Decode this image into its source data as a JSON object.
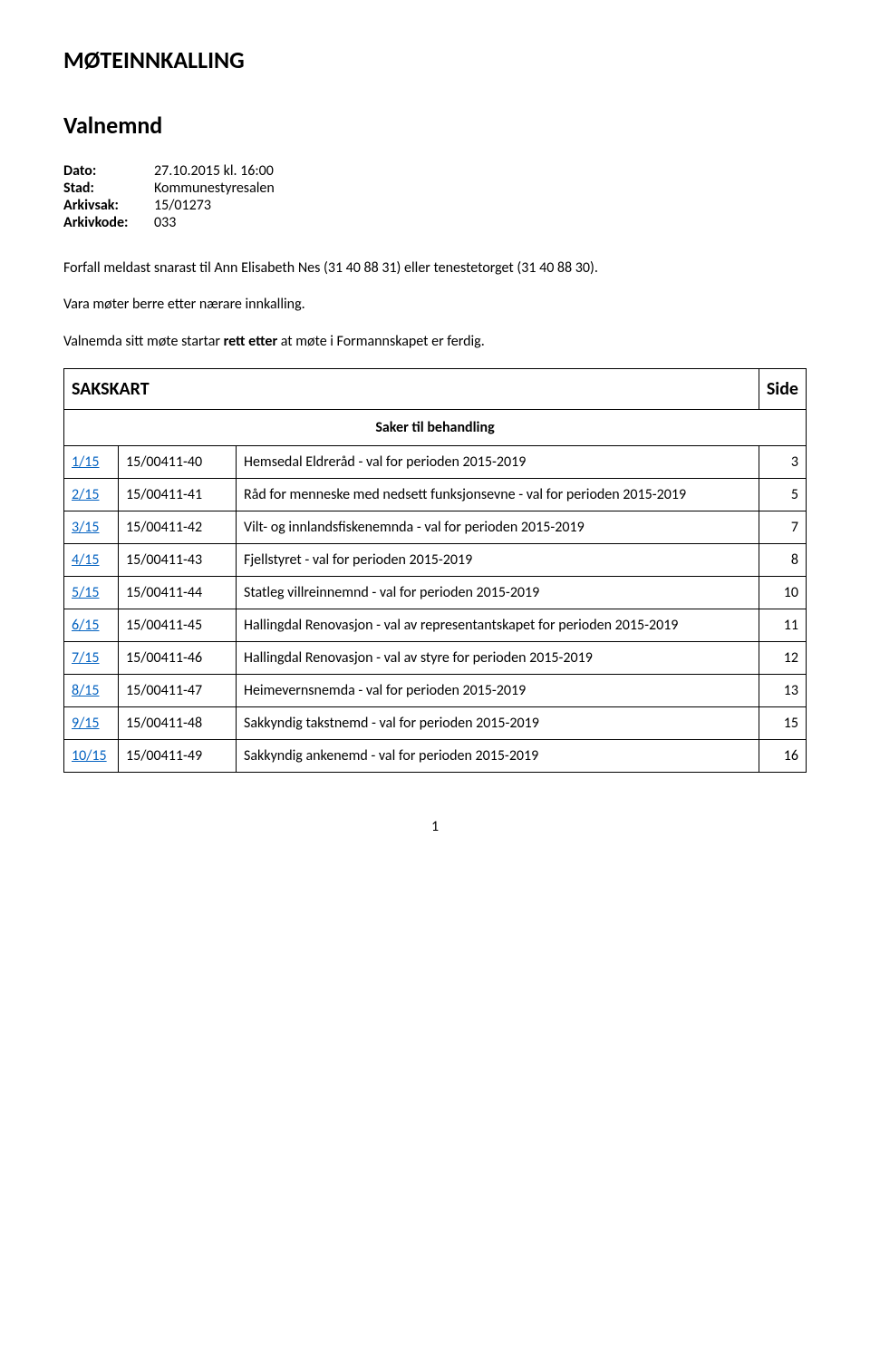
{
  "title": "MØTEINNKALLING",
  "subtitle": "Valnemnd",
  "meta": {
    "dato_label": "Dato:",
    "dato_value": "27.10.2015 kl. 16:00",
    "stad_label": "Stad:",
    "stad_value": "Kommunestyresalen",
    "arkivsak_label": "Arkivsak:",
    "arkivsak_value": "15/01273",
    "arkivkode_label": "Arkivkode:",
    "arkivkode_value": "033"
  },
  "body1": "Forfall meldast snarast til Ann Elisabeth Nes (31 40 88 31) eller tenestetorget (31 40 88 30).",
  "body2": "Vara møter berre etter nærare innkalling.",
  "body3_prefix": "Valnemda sitt møte startar ",
  "body3_bold": "rett etter",
  "body3_suffix": " at møte i Formannskapet er ferdig.",
  "sakskart_label": "SAKSKART",
  "side_label": "Side",
  "subheader": "Saker til behandling",
  "rows": [
    {
      "link": "1/15",
      "id": "15/00411-40",
      "desc": "Hemsedal Eldreråd - val for perioden 2015-2019",
      "page": "3"
    },
    {
      "link": "2/15",
      "id": "15/00411-41",
      "desc": "Råd for menneske med nedsett funksjonsevne - val for perioden 2015-2019",
      "page": "5"
    },
    {
      "link": "3/15",
      "id": "15/00411-42",
      "desc": "Vilt- og innlandsfiskenemnda - val for perioden 2015-2019",
      "page": "7"
    },
    {
      "link": "4/15",
      "id": "15/00411-43",
      "desc": "Fjellstyret - val for perioden 2015-2019",
      "page": "8"
    },
    {
      "link": "5/15",
      "id": "15/00411-44",
      "desc": "Statleg villreinnemnd - val for perioden 2015-2019",
      "page": "10"
    },
    {
      "link": "6/15",
      "id": "15/00411-45",
      "desc": "Hallingdal Renovasjon - val av representantskapet for perioden 2015-2019",
      "page": "11"
    },
    {
      "link": "7/15",
      "id": "15/00411-46",
      "desc": "Hallingdal Renovasjon - val av styre for perioden 2015-2019",
      "page": "12"
    },
    {
      "link": "8/15",
      "id": "15/00411-47",
      "desc": "Heimevernsnemda - val for perioden 2015-2019",
      "page": "13"
    },
    {
      "link": "9/15",
      "id": "15/00411-48",
      "desc": "Sakkyndig takstnemd - val for perioden 2015-2019",
      "page": "15"
    },
    {
      "link": "10/15",
      "id": "15/00411-49",
      "desc": "Sakkyndig ankenemd - val for perioden 2015-2019",
      "page": "16"
    }
  ],
  "page_number": "1",
  "colors": {
    "text": "#000000",
    "link": "#0563c1",
    "background": "#ffffff",
    "border": "#000000"
  }
}
